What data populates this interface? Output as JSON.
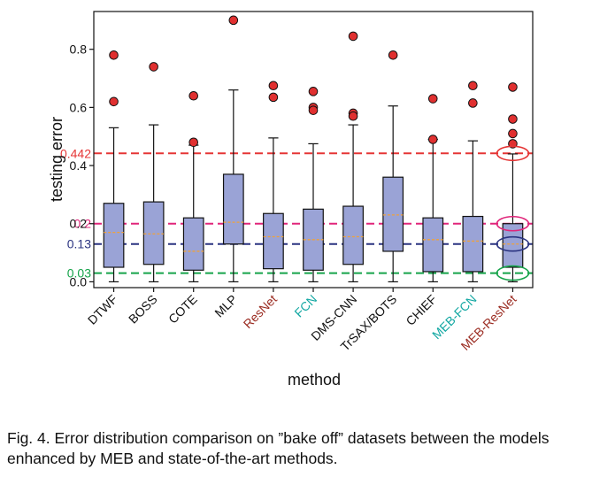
{
  "chart_data": {
    "type": "box",
    "xlabel": "method",
    "ylabel": "testing error",
    "ylim": [
      -0.02,
      0.93
    ],
    "yticks": [
      0.0,
      0.2,
      0.4,
      0.6,
      0.8
    ],
    "ytick_labels": [
      "0.0",
      "0.2",
      "0.4",
      "0.6",
      "0.8"
    ],
    "categories": [
      {
        "label": "DTWF",
        "color": "#111111"
      },
      {
        "label": "BOSS",
        "color": "#111111"
      },
      {
        "label": "COTE",
        "color": "#111111"
      },
      {
        "label": "MLP",
        "color": "#111111"
      },
      {
        "label": "ResNet",
        "color": "#9b2c22"
      },
      {
        "label": "FCN",
        "color": "#12a7a2"
      },
      {
        "label": "DMS-CNN",
        "color": "#111111"
      },
      {
        "label": "TrSAX/BOTS",
        "color": "#111111"
      },
      {
        "label": "CHIEF",
        "color": "#111111"
      },
      {
        "label": "MEB-FCN",
        "color": "#12a7a2"
      },
      {
        "label": "MEB-ResNet",
        "color": "#9b2c22"
      }
    ],
    "boxes": [
      {
        "whislo": 0.0,
        "q1": 0.05,
        "med": 0.17,
        "q3": 0.27,
        "whishi": 0.53,
        "fliers": [
          0.78,
          0.62
        ]
      },
      {
        "whislo": 0.0,
        "q1": 0.06,
        "med": 0.165,
        "q3": 0.275,
        "whishi": 0.54,
        "fliers": [
          0.74
        ]
      },
      {
        "whislo": 0.0,
        "q1": 0.04,
        "med": 0.105,
        "q3": 0.22,
        "whishi": 0.47,
        "fliers": [
          0.64,
          0.48
        ]
      },
      {
        "whislo": 0.0,
        "q1": 0.13,
        "med": 0.205,
        "q3": 0.37,
        "whishi": 0.66,
        "fliers": [
          0.9
        ]
      },
      {
        "whislo": 0.0,
        "q1": 0.045,
        "med": 0.155,
        "q3": 0.235,
        "whishi": 0.495,
        "fliers": [
          0.675,
          0.635
        ]
      },
      {
        "whislo": 0.0,
        "q1": 0.04,
        "med": 0.145,
        "q3": 0.25,
        "whishi": 0.475,
        "fliers": [
          0.655,
          0.6,
          0.59
        ]
      },
      {
        "whislo": 0.0,
        "q1": 0.06,
        "med": 0.155,
        "q3": 0.26,
        "whishi": 0.54,
        "fliers": [
          0.845,
          0.58,
          0.57
        ]
      },
      {
        "whislo": 0.0,
        "q1": 0.105,
        "med": 0.23,
        "q3": 0.36,
        "whishi": 0.605,
        "fliers": [
          0.78
        ]
      },
      {
        "whislo": 0.0,
        "q1": 0.035,
        "med": 0.145,
        "q3": 0.22,
        "whishi": 0.49,
        "fliers": [
          0.63,
          0.49
        ]
      },
      {
        "whislo": 0.0,
        "q1": 0.035,
        "med": 0.14,
        "q3": 0.225,
        "whishi": 0.485,
        "fliers": [
          0.675,
          0.615
        ]
      },
      {
        "whislo": 0.0,
        "q1": 0.05,
        "med": 0.13,
        "q3": 0.2,
        "whishi": 0.44,
        "fliers": [
          0.67,
          0.56,
          0.51,
          0.475
        ]
      }
    ],
    "reference_lines": [
      {
        "value": 0.442,
        "label": "0.442",
        "color": "#e53535"
      },
      {
        "value": 0.2,
        "label": "0.2",
        "color": "#e0257a"
      },
      {
        "value": 0.13,
        "label": "0.13",
        "color": "#2b3481"
      },
      {
        "value": 0.03,
        "label": "0.03",
        "color": "#16a34a"
      }
    ],
    "box_fill": "#9aa3d6",
    "median_color": "#f0a23a",
    "flier_color": "#e03030",
    "grid": false
  },
  "caption": "Fig. 4. Error distribution comparison on ”bake off” datasets between the models enhanced by MEB and state-of-the-art methods."
}
